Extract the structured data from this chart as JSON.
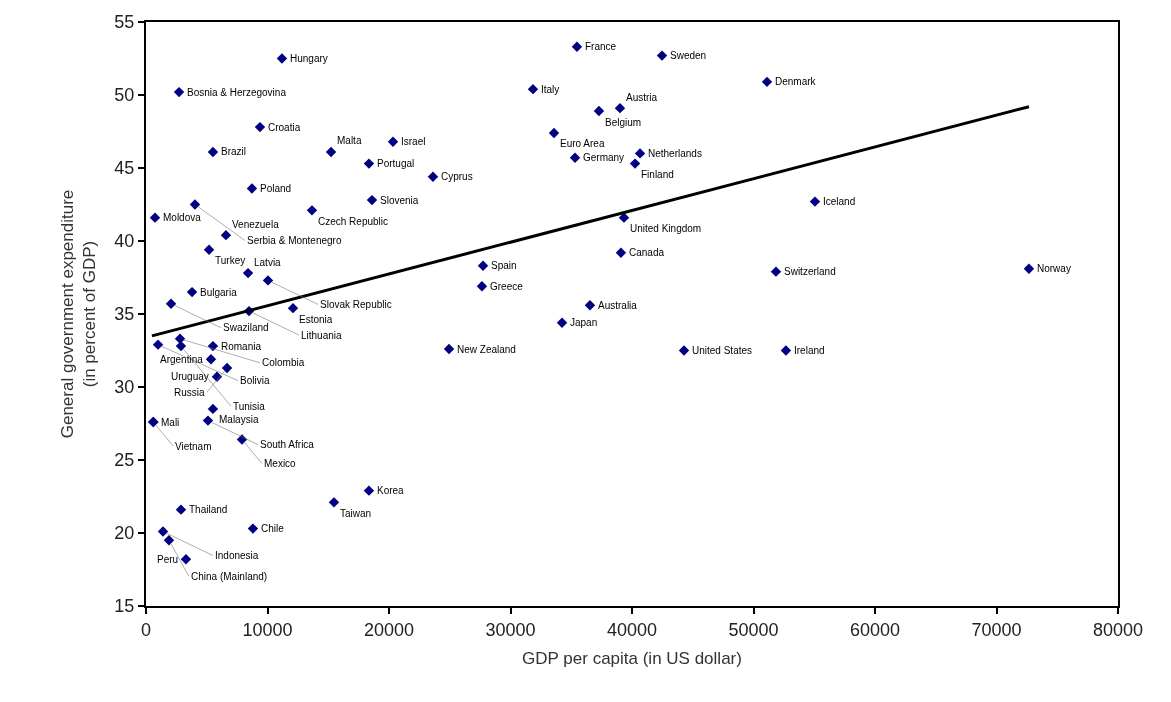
{
  "chart_data": {
    "type": "scatter",
    "xlabel": "GDP per capita (in US dollar)",
    "ylabel": "General government expenditure\n(in percent of GDP)",
    "xlim": [
      0,
      80000
    ],
    "xticks": [
      0,
      10000,
      20000,
      30000,
      40000,
      50000,
      60000,
      70000,
      80000
    ],
    "ylim": [
      15,
      55
    ],
    "yticks": [
      15,
      20,
      25,
      30,
      35,
      40,
      45,
      50,
      55
    ],
    "grid": false,
    "marker": "diamond",
    "series": [
      {
        "color": "#000080",
        "x": [
          11190,
          2720,
          9380,
          5510,
          15230,
          20330,
          18350,
          23620,
          8720,
          18600,
          13660,
          4030,
          740,
          6580,
          5190,
          8400,
          10040,
          3790,
          2060,
          8480,
          12100,
          2800,
          990,
          2880,
          5510,
          5350,
          6670,
          5840,
          5510,
          5100,
          600,
          600,
          7900,
          18350,
          15470,
          2880,
          1400,
          1890,
          8800,
          3290,
          24940,
          35470,
          42470,
          31850,
          51110,
          37280,
          39010,
          33580,
          35310,
          40660,
          40250,
          39340,
          39090,
          27740,
          27650,
          36540,
          34240,
          44280,
          52670,
          55060,
          51850,
          72670
        ],
        "values": [
          52.5,
          50.2,
          47.8,
          46.1,
          46.1,
          46.8,
          45.3,
          44.4,
          43.6,
          42.8,
          42.1,
          42.5,
          41.6,
          40.4,
          39.4,
          37.8,
          37.3,
          36.5,
          35.7,
          35.2,
          35.4,
          33.3,
          32.9,
          32.8,
          32.8,
          31.9,
          31.3,
          30.7,
          28.5,
          27.7,
          27.6,
          27.6,
          26.4,
          22.9,
          22.1,
          21.6,
          20.1,
          19.5,
          20.3,
          18.2,
          32.6,
          53.3,
          52.7,
          50.4,
          50.9,
          48.9,
          49.1,
          47.4,
          45.7,
          46.0,
          45.3,
          41.6,
          39.2,
          38.3,
          36.9,
          35.6,
          34.4,
          32.5,
          32.5,
          42.7,
          37.9,
          38.1
        ],
        "value_labels": [
          "Hungary",
          "Bosnia & Herzegovina",
          "Croatia",
          "Brazil",
          "Malta",
          "Israel",
          "Portugal",
          "Cyprus",
          "Poland",
          "Slovenia",
          "Czech Republic",
          "Serbia & Montenegro",
          "Moldova",
          "Venezuela",
          "Turkey",
          "Latvia",
          "Slovak Republic",
          "Bulgaria",
          "Swaziland",
          "Lithuania",
          "Estonia",
          "Colombia",
          "Bolivia",
          "Tunisia",
          "Romania",
          "Argentina",
          "Russia",
          "Uruguay",
          "Malaysia",
          "South Africa",
          "Mali",
          "Vietnam",
          "Mexico",
          "Korea",
          "Taiwan",
          "Thailand",
          "Indonesia",
          "China (Mainland)",
          "Chile",
          "Peru",
          "New Zealand",
          "France",
          "Sweden",
          "Italy",
          "Denmark",
          "Belgium",
          "Austria",
          "Euro Area",
          "Germany",
          "Netherlands",
          "Finland",
          "United Kingdom",
          "Canada",
          "Spain",
          "Greece",
          "Australia",
          "Japan",
          "United States",
          "Ireland",
          "Iceland",
          "Switzerland",
          "Norway"
        ]
      },
      {
        "type": "line",
        "color": "#000000",
        "marker": "none",
        "line_style": "solid",
        "x": [
          490,
          72670
        ],
        "values": [
          33.5,
          49.2
        ]
      }
    ]
  }
}
